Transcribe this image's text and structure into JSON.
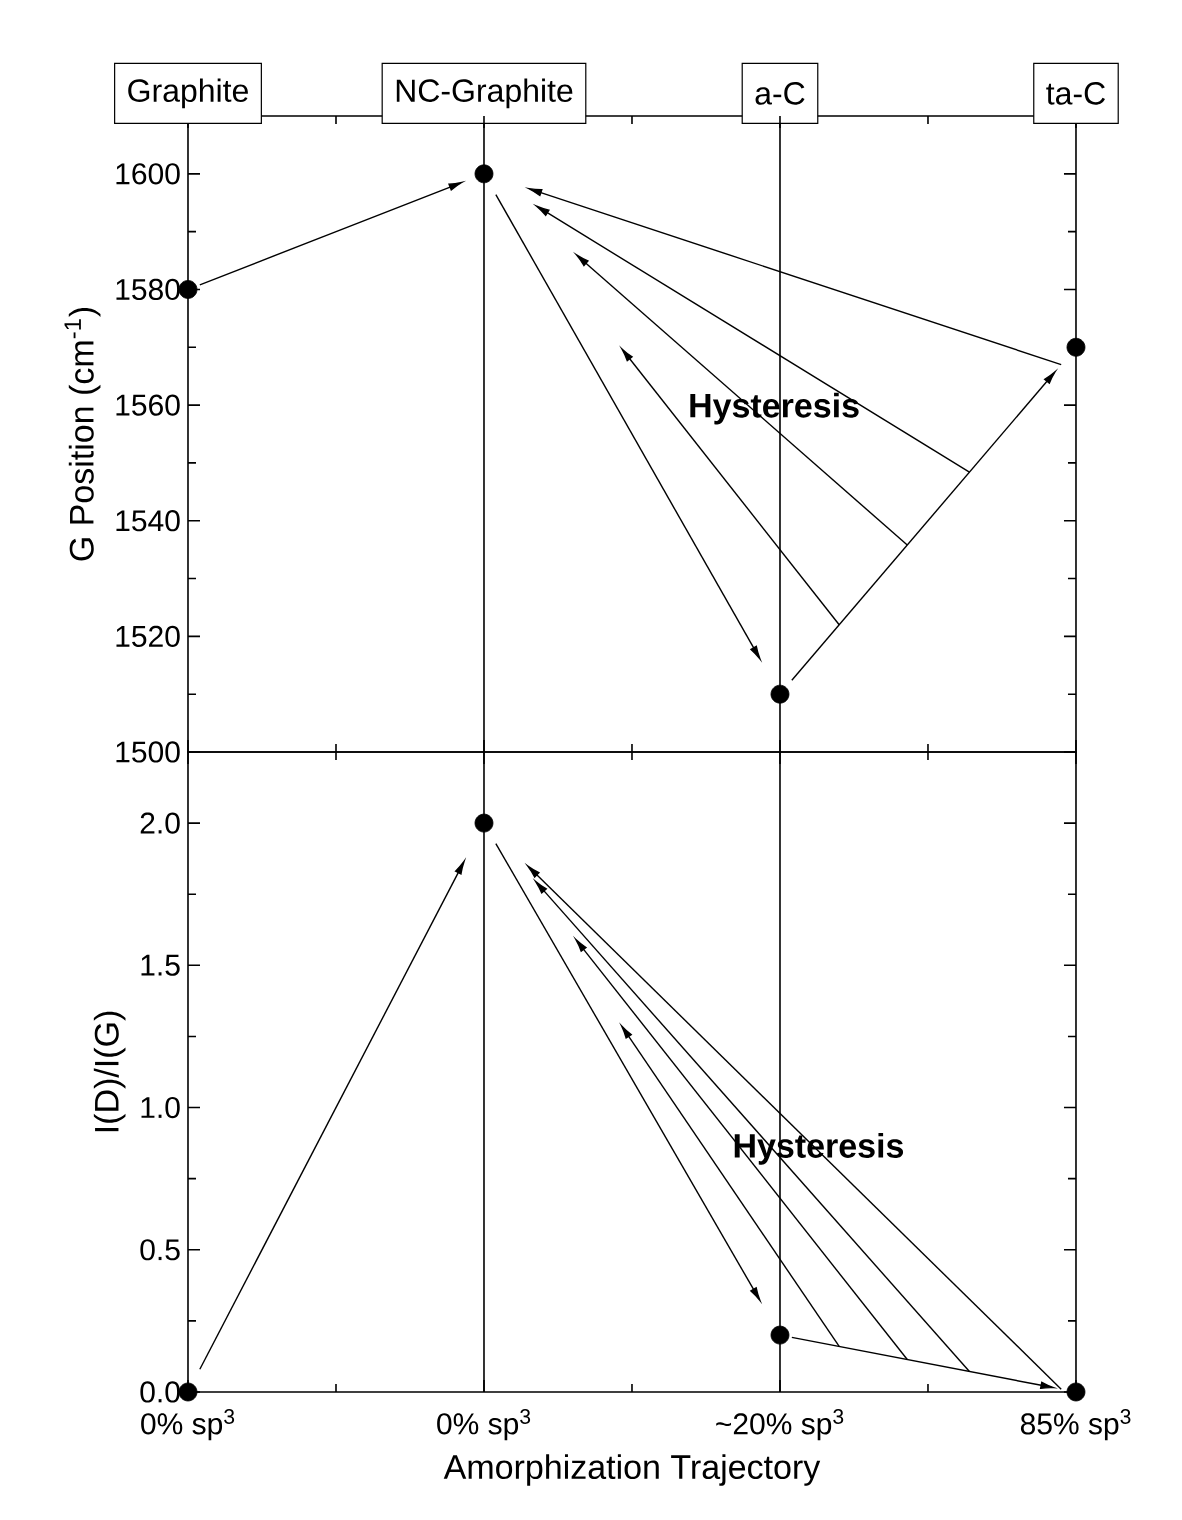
{
  "chart_data": [
    {
      "type": "scatter",
      "categories": [
        "Graphite",
        "NC-Graphite",
        "a-C",
        "ta-C"
      ],
      "values": [
        1580,
        1600,
        1510,
        1570
      ],
      "color": "#000000",
      "marker": "circle",
      "ylabel": "G Position (cm$^{-1}$)",
      "ylim": [
        1500,
        1610
      ],
      "yticks": [
        1500,
        {
          "value": 1510,
          "label": null
        },
        1520,
        {
          "value": 1530,
          "label": null
        },
        1540,
        {
          "value": 1550,
          "label": null
        },
        1560,
        {
          "value": 1570,
          "label": null
        },
        1580,
        {
          "value": 1590,
          "label": null
        },
        1600
      ],
      "ref_lines": [
        {
          "axis": "x",
          "value": "NC-Graphite",
          "color": "#000000"
        },
        {
          "axis": "x",
          "value": "a-C",
          "color": "#000000"
        }
      ],
      "annotations": [
        "Hysteresis"
      ]
    },
    {
      "type": "scatter",
      "categories": [
        "0% sp$^{3}$",
        "0% sp$^{3}$",
        "~20% sp$^{3}$",
        "85% sp$^{3}$"
      ],
      "values": [
        0,
        2,
        0.2,
        0
      ],
      "color": "#000000",
      "marker": "circle",
      "ylabel": "I(D)/I(G)",
      "xlabel": "Amorphization Trajectory",
      "ylim": [
        0,
        2.25
      ],
      "yticks": [
        {
          "value": 0,
          "label": "0.0"
        },
        {
          "value": 0.25,
          "label": null
        },
        {
          "value": 0.5,
          "label": "0.5"
        },
        {
          "value": 0.75,
          "label": null
        },
        {
          "value": 1,
          "label": "1.0"
        },
        {
          "value": 1.25,
          "label": null
        },
        {
          "value": 1.5,
          "label": "1.5"
        },
        {
          "value": 1.75,
          "label": null
        },
        {
          "value": 2,
          "label": "2.0"
        }
      ],
      "annotations": [
        "Hysteresis"
      ]
    }
  ]
}
